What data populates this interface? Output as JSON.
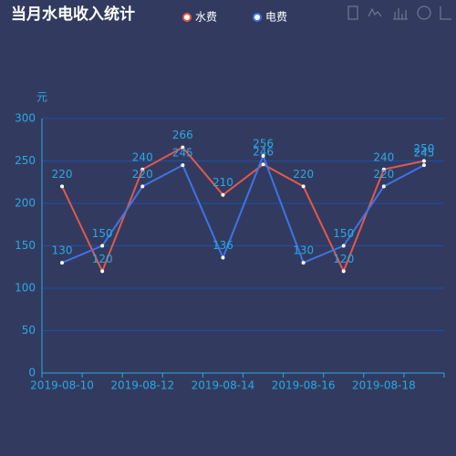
{
  "chart_data": {
    "type": "line",
    "title": "当月水电收入统计",
    "y_label": "元",
    "categories": [
      "2019-08-10",
      null,
      "2019-08-12",
      null,
      "2019-08-14",
      null,
      "2019-08-16",
      null,
      "2019-08-18",
      null
    ],
    "series": [
      {
        "name": "水费",
        "color": "#e2584c",
        "values": [
          220,
          120,
          240,
          266,
          210,
          246,
          220,
          120,
          240,
          250
        ]
      },
      {
        "name": "电费",
        "color": "#3f73e6",
        "values": [
          130,
          150,
          220,
          245,
          136,
          256,
          130,
          150,
          220,
          245
        ]
      }
    ],
    "ylim": [
      0,
      300
    ],
    "yticks": [
      0,
      50,
      100,
      150,
      200,
      250,
      300
    ],
    "grid": true
  }
}
